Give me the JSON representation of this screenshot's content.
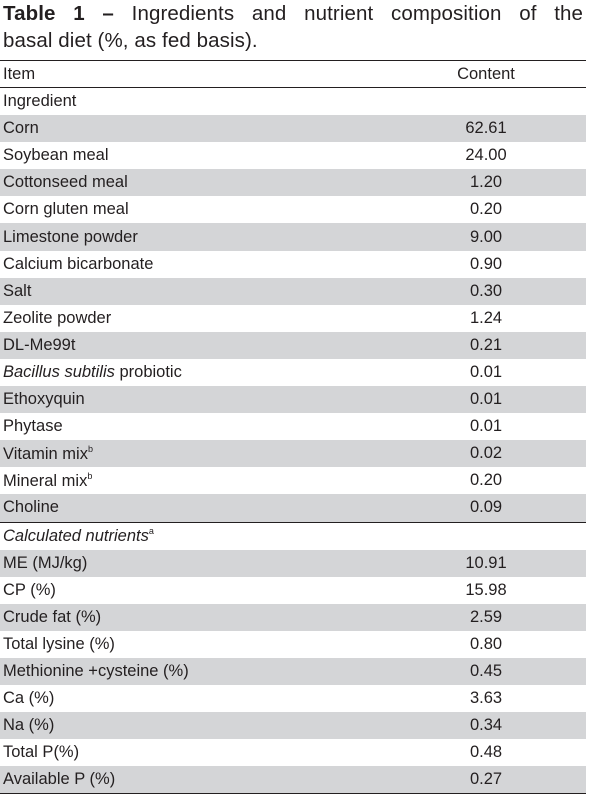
{
  "caption": {
    "label": "Table 1 –",
    "line1_rest": "Ingredients and nutrient composition of the",
    "line2": "basal diet (%, as fed basis)."
  },
  "table": {
    "headers": {
      "item": "Item",
      "content": "Content"
    },
    "sections": [
      {
        "title": "Ingredient",
        "rows": [
          {
            "item": "Corn",
            "value": "62.61"
          },
          {
            "item": "Soybean meal",
            "value": "24.00"
          },
          {
            "item": "Cottonseed meal",
            "value": "1.20"
          },
          {
            "item": "Corn gluten meal",
            "value": "0.20"
          },
          {
            "item": "Limestone powder",
            "value": "9.00"
          },
          {
            "item": "Calcium bicarbonate",
            "value": "0.90"
          },
          {
            "item": "Salt",
            "value": "0.30"
          },
          {
            "item": "Zeolite powder",
            "value": "1.24"
          },
          {
            "item": "DL-Me99t",
            "value": "0.21"
          },
          {
            "item_italic": "Bacillus subtilis",
            "item": "probiotic",
            "value": "0.01"
          },
          {
            "item": "Ethoxyquin",
            "value": "0.01"
          },
          {
            "item": "Phytase",
            "value": "0.01"
          },
          {
            "item": "Vitamin mix",
            "sup": "b",
            "value": "0.02"
          },
          {
            "item": "Mineral mix",
            "sup": "b",
            "value": "0.20"
          },
          {
            "item": "Choline",
            "value": "0.09"
          }
        ]
      },
      {
        "title": "Calculated nutrients",
        "title_sup": "a",
        "rows": [
          {
            "item": "ME (MJ/kg)",
            "value": "10.91"
          },
          {
            "item": "CP (%)",
            "value": "15.98"
          },
          {
            "item": "Crude fat (%)",
            "value": "2.59"
          },
          {
            "item": "Total lysine (%)",
            "value": "0.80"
          },
          {
            "item": "Methionine +cysteine (%)",
            "value": "0.45"
          },
          {
            "item": "Ca (%)",
            "value": "3.63"
          },
          {
            "item": "Na (%)",
            "value": "0.34"
          },
          {
            "item": "Total P(%)",
            "value": "0.48"
          },
          {
            "item": "Available P (%)",
            "value": "0.27"
          }
        ]
      }
    ]
  },
  "colors": {
    "shade": "#d4d5d7",
    "text": "#231f20"
  }
}
